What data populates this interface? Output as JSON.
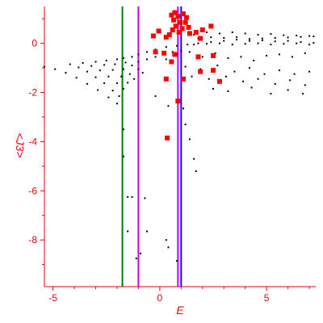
{
  "chart_data": {
    "type": "scatter",
    "title": "",
    "xlabel": "E",
    "ylabel": "<J3>",
    "xlim": [
      -5.4,
      7.3
    ],
    "ylim": [
      -9.9,
      1.5
    ],
    "grid": false,
    "x_ticks": [
      -5,
      0,
      5
    ],
    "y_ticks": [
      0,
      -2,
      -4,
      -6,
      -8
    ],
    "colors": {
      "axis": "#e8000b",
      "points": "#000000",
      "highlight": "#ff0000",
      "line_green": "#008000",
      "line_magenta": "#d000d0",
      "line_blue": "#2200ff",
      "line_magenta_2": "#c000ff"
    },
    "vertical_lines": [
      {
        "x": -1.75,
        "color": "#008000"
      },
      {
        "x": -1.0,
        "color": "#d000d0"
      },
      {
        "x": 0.85,
        "color": "#c000ff"
      },
      {
        "x": 1.0,
        "color": "#2200ff"
      }
    ],
    "series": [
      {
        "marker": "small-dot",
        "color": "#000000",
        "points": [
          [
            -5.4,
            -0.95
          ],
          [
            -4.9,
            -1.05
          ],
          [
            -4.4,
            -1.2
          ],
          [
            -3.9,
            -1.4
          ],
          [
            -3.4,
            -1.65
          ],
          [
            -2.9,
            -1.9
          ],
          [
            -2.4,
            -2.2
          ],
          [
            -2.0,
            -2.45
          ],
          [
            -4.2,
            -0.85
          ],
          [
            -3.8,
            -0.98
          ],
          [
            -3.4,
            -1.15
          ],
          [
            -3.0,
            -1.38
          ],
          [
            -2.6,
            -1.62
          ],
          [
            -2.2,
            -1.92
          ],
          [
            -1.9,
            -2.15
          ],
          [
            -3.6,
            -0.8
          ],
          [
            -3.2,
            -0.92
          ],
          [
            -2.8,
            -1.1
          ],
          [
            -2.4,
            -1.35
          ],
          [
            -2.0,
            -1.62
          ],
          [
            -1.7,
            -1.85
          ],
          [
            -3.0,
            -0.75
          ],
          [
            -2.6,
            -0.88
          ],
          [
            -2.2,
            -1.08
          ],
          [
            -1.8,
            -1.35
          ],
          [
            -1.5,
            -1.6
          ],
          [
            -2.5,
            -0.7
          ],
          [
            -2.1,
            -0.85
          ],
          [
            -1.7,
            -1.05
          ],
          [
            -1.4,
            -1.25
          ],
          [
            -1.2,
            -1.45
          ],
          [
            -2.0,
            -0.65
          ],
          [
            -1.6,
            -0.78
          ],
          [
            -1.3,
            -0.9
          ],
          [
            -1.0,
            -1.05
          ],
          [
            -0.8,
            -1.2
          ],
          [
            -1.7,
            -0.6
          ],
          [
            -1.3,
            -0.55
          ],
          [
            -1.0,
            -0.45
          ],
          [
            -0.6,
            -0.35
          ],
          [
            -0.2,
            -0.25
          ],
          [
            0.3,
            -0.15
          ],
          [
            0.8,
            -0.1
          ],
          [
            1.3,
            -0.05
          ],
          [
            1.8,
            0.0
          ],
          [
            2.4,
            0.05
          ],
          [
            3.0,
            0.1
          ],
          [
            3.6,
            0.15
          ],
          [
            4.2,
            0.18
          ],
          [
            4.8,
            0.2
          ],
          [
            5.4,
            0.22
          ],
          [
            6.0,
            0.24
          ],
          [
            6.6,
            0.26
          ],
          [
            7.2,
            0.28
          ],
          [
            -1.0,
            -0.75
          ],
          [
            -0.6,
            -0.65
          ],
          [
            -0.2,
            -0.55
          ],
          [
            0.2,
            -0.45
          ],
          [
            0.6,
            -0.35
          ],
          [
            1.0,
            -0.3
          ],
          [
            1.6,
            0.35
          ],
          [
            2.2,
            0.45
          ],
          [
            2.8,
            0.4
          ],
          [
            3.4,
            0.45
          ],
          [
            4.0,
            0.4
          ],
          [
            4.6,
            0.35
          ],
          [
            5.2,
            0.38
          ],
          [
            5.8,
            0.33
          ],
          [
            6.4,
            0.32
          ],
          [
            7.0,
            0.3
          ],
          [
            1.8,
            0.2
          ],
          [
            2.4,
            0.25
          ],
          [
            3.0,
            0.22
          ],
          [
            3.6,
            0.25
          ],
          [
            4.2,
            0.1
          ],
          [
            4.8,
            0.12
          ],
          [
            5.4,
            0.08
          ],
          [
            6.0,
            0.1
          ],
          [
            6.6,
            0.05
          ],
          [
            7.2,
            0.02
          ],
          [
            1.6,
            -0.05
          ],
          [
            2.2,
            -0.02
          ],
          [
            2.8,
            0.0
          ],
          [
            3.4,
            -0.05
          ],
          [
            4.0,
            -0.02
          ],
          [
            4.6,
            0.0
          ],
          [
            5.2,
            -0.05
          ],
          [
            5.8,
            -0.02
          ],
          [
            6.4,
            0.0
          ],
          [
            7.0,
            -0.05
          ],
          [
            0.3,
            -0.65
          ],
          [
            0.8,
            -0.45
          ],
          [
            1.4,
            -0.35
          ],
          [
            2.0,
            -0.55
          ],
          [
            2.6,
            -0.4
          ],
          [
            3.2,
            -0.6
          ],
          [
            3.8,
            -0.55
          ],
          [
            4.4,
            -0.7
          ],
          [
            5.0,
            -0.5
          ],
          [
            5.6,
            -0.45
          ],
          [
            6.2,
            -0.55
          ],
          [
            6.8,
            -0.4
          ],
          [
            1.2,
            -0.95
          ],
          [
            1.9,
            -1.05
          ],
          [
            2.7,
            -0.9
          ],
          [
            3.5,
            -1.15
          ],
          [
            4.2,
            -1.0
          ],
          [
            4.9,
            -1.25
          ],
          [
            5.6,
            -1.1
          ],
          [
            6.3,
            -1.25
          ],
          [
            7.0,
            -1.15
          ],
          [
            1.5,
            -1.35
          ],
          [
            2.3,
            -1.45
          ],
          [
            3.1,
            -1.35
          ],
          [
            3.9,
            -1.55
          ],
          [
            4.6,
            -1.45
          ],
          [
            5.4,
            -1.65
          ],
          [
            6.1,
            -1.5
          ],
          [
            6.8,
            -1.7
          ],
          [
            2.5,
            -1.85
          ],
          [
            3.2,
            -1.95
          ],
          [
            4.3,
            -1.8
          ],
          [
            5.2,
            -2.05
          ],
          [
            6.0,
            -1.9
          ],
          [
            6.7,
            -2.05
          ],
          [
            -0.2,
            -2.15
          ],
          [
            0.4,
            -2.55
          ],
          [
            1.1,
            -2.65
          ],
          [
            1.2,
            -3.3
          ],
          [
            1.4,
            -3.9
          ],
          [
            1.6,
            -4.7
          ],
          [
            1.7,
            -5.2
          ],
          [
            -1.7,
            -3.5
          ],
          [
            -1.7,
            -4.6
          ],
          [
            -1.5,
            -6.25
          ],
          [
            -1.3,
            -6.25
          ],
          [
            -0.7,
            -6.3
          ],
          [
            -1.5,
            -7.65
          ],
          [
            -0.6,
            -7.65
          ],
          [
            -0.9,
            -8.55
          ],
          [
            -1.1,
            -8.75
          ],
          [
            0.3,
            -8.0
          ],
          [
            0.4,
            -8.3
          ],
          [
            0.8,
            -8.85
          ]
        ]
      },
      {
        "marker": "red-square",
        "color": "#ff0000",
        "points": [
          [
            0.55,
            1.15
          ],
          [
            0.7,
            1.25
          ],
          [
            0.85,
            1.1
          ],
          [
            1.1,
            1.2
          ],
          [
            1.25,
            1.05
          ],
          [
            0.65,
            0.95
          ],
          [
            0.95,
            0.85
          ],
          [
            1.2,
            0.85
          ],
          [
            0.75,
            0.7
          ],
          [
            1.05,
            0.6
          ],
          [
            1.35,
            0.65
          ],
          [
            0.6,
            0.55
          ],
          [
            0.9,
            0.45
          ],
          [
            1.4,
            0.4
          ],
          [
            0.45,
            0.35
          ],
          [
            1.7,
            0.45
          ],
          [
            2.0,
            0.55
          ],
          [
            2.4,
            0.7
          ],
          [
            1.9,
            0.2
          ],
          [
            0.3,
            0.25
          ],
          [
            -0.05,
            0.5
          ],
          [
            -0.3,
            0.3
          ],
          [
            0.2,
            -0.4
          ],
          [
            0.7,
            -0.45
          ],
          [
            1.8,
            -0.55
          ],
          [
            2.5,
            -0.5
          ],
          [
            -0.2,
            -0.35
          ],
          [
            0.55,
            -0.75
          ],
          [
            0.3,
            -1.45
          ],
          [
            1.1,
            -1.45
          ],
          [
            1.9,
            -1.15
          ],
          [
            2.5,
            -1.1
          ],
          [
            2.8,
            -1.55
          ],
          [
            0.85,
            -2.35
          ],
          [
            0.35,
            -3.85
          ]
        ]
      }
    ]
  }
}
